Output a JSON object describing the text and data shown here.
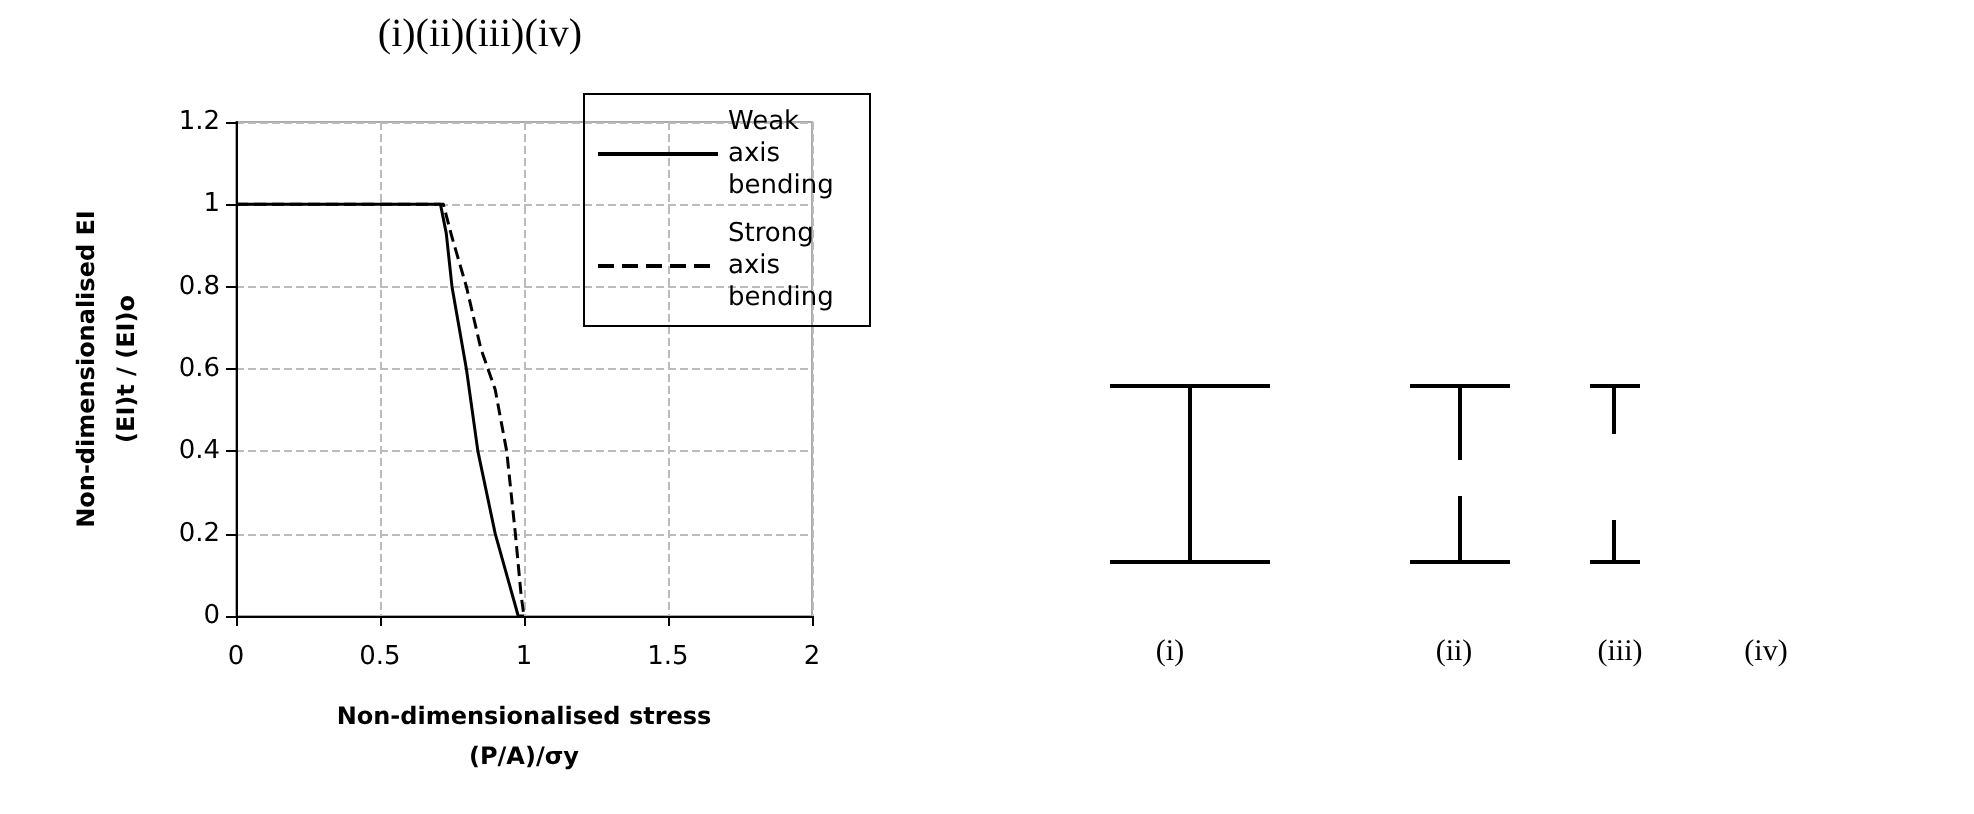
{
  "chart_data": {
    "type": "line",
    "title": "(i)(ii)(iii)(iv)",
    "xlabel": "Non-dimensionalised stress\n(P/A)/σy",
    "ylabel": "Non-dimensionalised EI\n(EI)t / (EI)o",
    "x": [
      0,
      0.71,
      0.73,
      0.75,
      0.8,
      0.84,
      0.9,
      0.94,
      0.98,
      1
    ],
    "series": [
      {
        "name": "Weak axis bending",
        "color": "#000000",
        "line_style": "solid",
        "values": [
          1,
          1,
          0.93,
          0.8,
          0.6,
          0.4,
          0.2,
          0.1,
          0,
          0
        ]
      },
      {
        "name": "Strong axis bending",
        "color": "#000000",
        "line_style": "dashed",
        "x": [
          0,
          0.72,
          0.75,
          0.8,
          0.85,
          0.9,
          0.94,
          0.97,
          0.99,
          1
        ],
        "values": [
          1,
          1,
          0.92,
          0.8,
          0.65,
          0.55,
          0.4,
          0.2,
          0.05,
          0
        ]
      }
    ],
    "xlim": [
      0,
      2
    ],
    "xticks": [
      0,
      0.5,
      1,
      1.5,
      2
    ],
    "ylim": [
      0,
      1.2
    ],
    "yticks": [
      0,
      0.2,
      0.4,
      0.6,
      0.8,
      1,
      1.2
    ],
    "grid": true,
    "legend": "top right",
    "marker": "none",
    "annotations": [
      "(i)",
      "(ii)",
      "(iii)",
      "(iv)"
    ]
  }
}
